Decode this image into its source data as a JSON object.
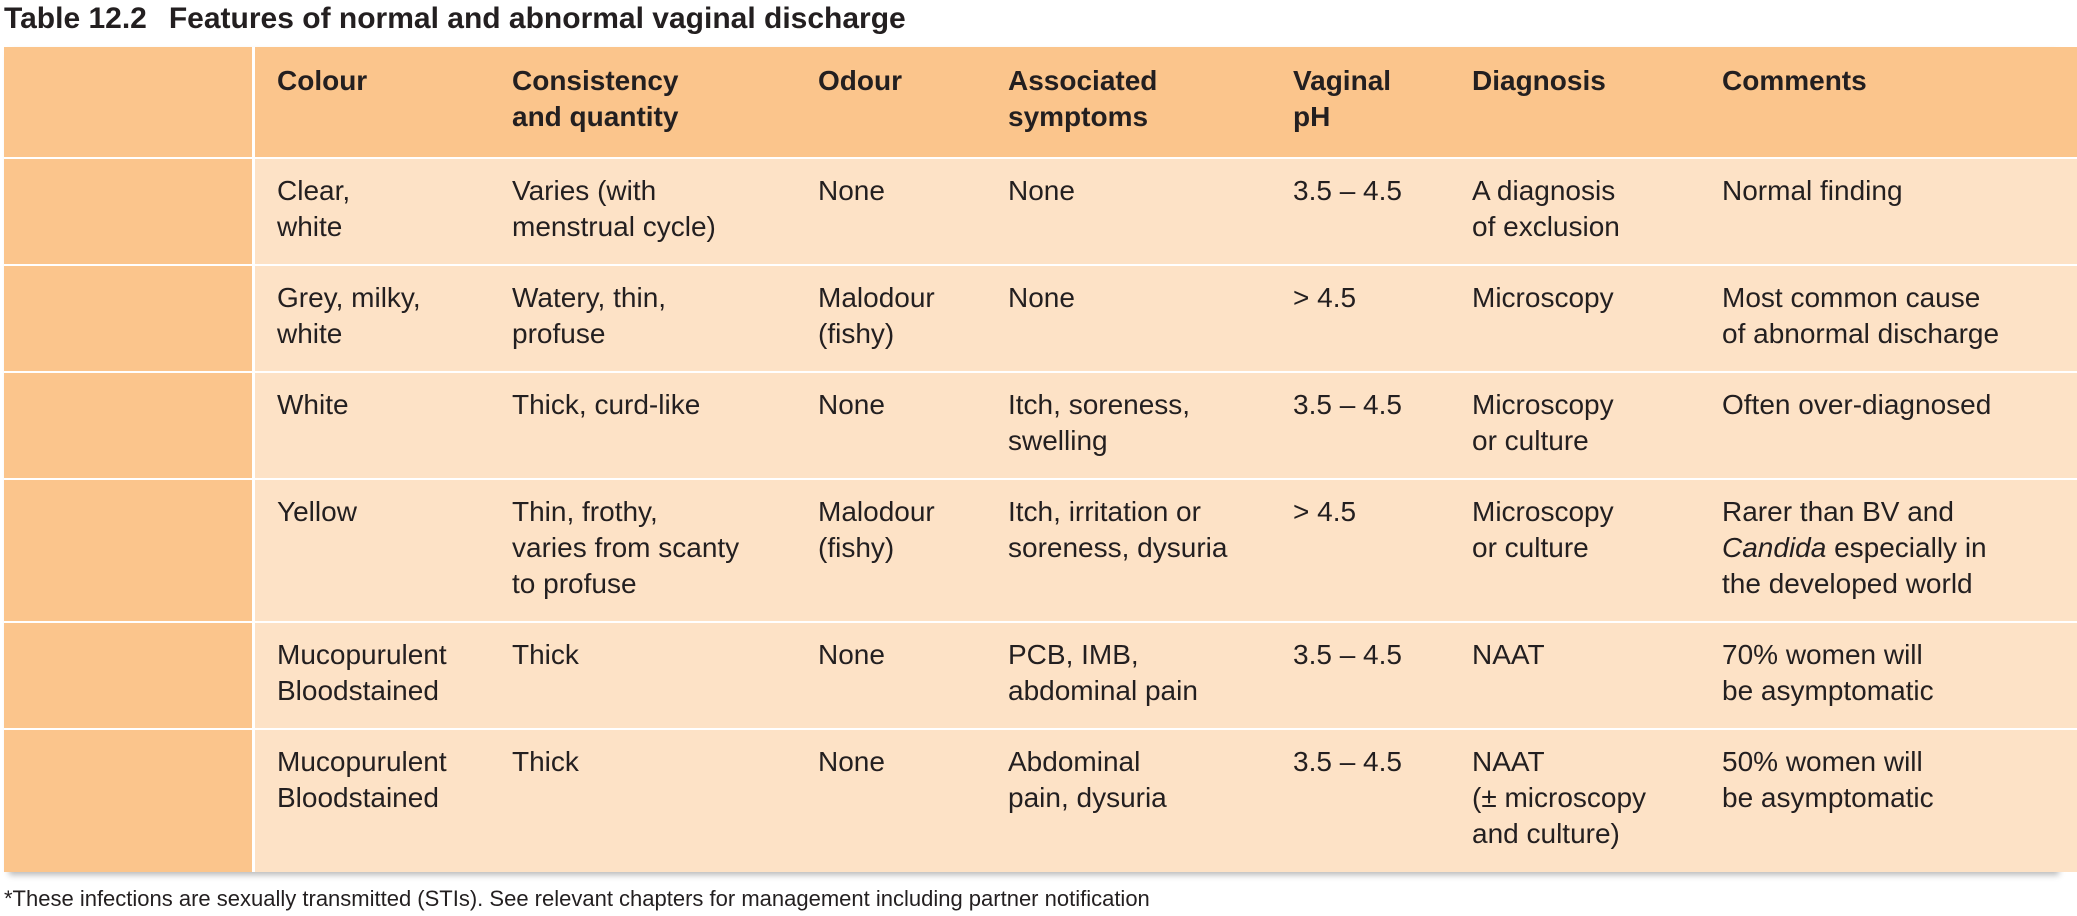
{
  "title": {
    "number": "Table 12.2",
    "text": "Features of normal and abnormal vaginal discharge"
  },
  "headers": [
    "",
    "Colour",
    "Consistency\nand quantity",
    "Odour",
    "Associated\nsymptoms",
    "Vaginal\npH",
    "Diagnosis",
    "Comments"
  ],
  "rows": [
    {
      "label": "",
      "colour": "Clear,\nwhite",
      "consistency": "Varies (with\nmenstrual cycle)",
      "odour": "None",
      "symptoms": "None",
      "ph": "3.5 – 4.5",
      "diagnosis": "A diagnosis\nof exclusion",
      "comments": "Normal finding"
    },
    {
      "label": "",
      "colour": "Grey, milky,\nwhite",
      "consistency": "Watery, thin,\nprofuse",
      "odour": "Malodour\n(fishy)",
      "symptoms": "None",
      "ph": "> 4.5",
      "diagnosis": "Microscopy",
      "comments": "Most common cause\nof abnormal discharge"
    },
    {
      "label": "",
      "colour": "White",
      "consistency": "Thick, curd-like",
      "odour": "None",
      "symptoms": "Itch, soreness,\nswelling",
      "ph": "3.5 – 4.5",
      "diagnosis": "Microscopy\nor culture",
      "comments": "Often over-diagnosed"
    },
    {
      "label": "",
      "colour": "Yellow",
      "consistency": "Thin, frothy,\nvaries from scanty\nto profuse",
      "odour": "Malodour\n(fishy)",
      "symptoms": "Itch, irritation or\nsoreness, dysuria",
      "ph": "> 4.5",
      "diagnosis": "Microscopy\nor culture",
      "comments_pre": "Rarer than BV and\n",
      "comments_italic": "Candida",
      "comments_post": " especially in\nthe developed world"
    },
    {
      "label": "",
      "colour": "Mucopurulent\nBloodstained",
      "consistency": "Thick",
      "odour": "None",
      "symptoms": "PCB, IMB,\nabdominal pain",
      "ph": "3.5 – 4.5",
      "diagnosis": "NAAT",
      "comments": "70% women will\nbe asymptomatic"
    },
    {
      "label": "",
      "colour": "Mucopurulent\nBloodstained",
      "consistency": "Thick",
      "odour": "None",
      "symptoms": "Abdominal\npain, dysuria",
      "ph": "3.5 – 4.5",
      "diagnosis": "NAAT\n(± microscopy\nand culture)",
      "comments": "50% women will\nbe asymptomatic"
    }
  ],
  "footnote": "*These infections are sexually transmitted (STIs). See relevant chapters for management including partner notification",
  "colors": {
    "header_bg": "#fbc58c",
    "row_bg": "#fde2c6",
    "first_col_bg": "#fbc58c",
    "divider": "#ffffff",
    "text": "#231f20"
  }
}
